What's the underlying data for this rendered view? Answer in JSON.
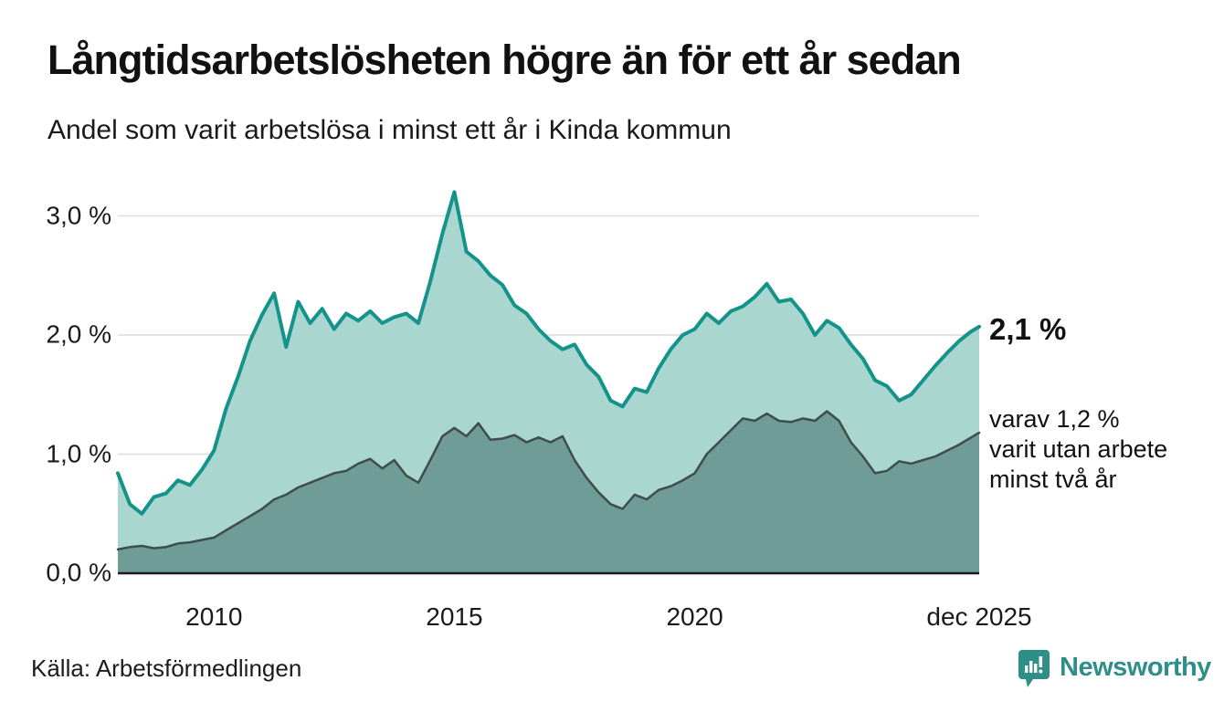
{
  "header": {
    "title": "Långtidsarbetslösheten högre än för ett år sedan",
    "subtitle": "Andel som varit arbetslösa i minst ett år i Kinda kommun"
  },
  "annotations": {
    "latest_total": "2,1 %",
    "two_year": {
      "line1": "varav 1,2 %",
      "line2": "varit utan arbete",
      "line3": "minst två år"
    }
  },
  "footer": {
    "source": "Källa: Arbetsförmedlingen",
    "brand": "Newsworthy",
    "brand_icon": "bar-chart-badge-icon"
  },
  "colors": {
    "total_line": "#14938a",
    "total_fill": "#a9d6cf",
    "two_year_line": "#3d4e4a",
    "two_year_fill": "#6f9c96",
    "gridline": "#dcdcdc",
    "axis_line": "#1b1b1b",
    "text": "#111111",
    "brand_teal": "#2e8f89"
  },
  "chart_data": {
    "type": "area",
    "title": "Långtidsarbetslösheten högre än för ett år sedan",
    "subtitle": "Andel som varit arbetslösa i minst ett år i Kinda kommun",
    "x_unit": "decimal_year",
    "grid": "horizontal",
    "ylim": [
      0,
      3.35
    ],
    "xlim": [
      2008.0,
      2025.9167
    ],
    "x": [
      2008.0,
      2008.25,
      2008.5,
      2008.75,
      2009.0,
      2009.25,
      2009.5,
      2009.75,
      2010.0,
      2010.25,
      2010.5,
      2010.75,
      2011.0,
      2011.25,
      2011.5,
      2011.75,
      2012.0,
      2012.25,
      2012.5,
      2012.75,
      2013.0,
      2013.25,
      2013.5,
      2013.75,
      2014.0,
      2014.25,
      2014.5,
      2014.75,
      2015.0,
      2015.25,
      2015.5,
      2015.75,
      2016.0,
      2016.25,
      2016.5,
      2016.75,
      2017.0,
      2017.25,
      2017.5,
      2017.75,
      2018.0,
      2018.25,
      2018.5,
      2018.75,
      2019.0,
      2019.25,
      2019.5,
      2019.75,
      2020.0,
      2020.25,
      2020.5,
      2020.75,
      2021.0,
      2021.25,
      2021.5,
      2021.75,
      2022.0,
      2022.25,
      2022.5,
      2022.75,
      2023.0,
      2023.25,
      2023.5,
      2023.75,
      2024.0,
      2024.25,
      2024.5,
      2024.75,
      2025.0,
      2025.25,
      2025.5,
      2025.75,
      2025.9167
    ],
    "series": [
      {
        "name": "Andel arbetslösa minst ett år",
        "latest_label": "2,1 %",
        "line_color": "#14938a",
        "fill_color": "#a9d6cf",
        "values": [
          0.84,
          0.58,
          0.5,
          0.64,
          0.67,
          0.78,
          0.74,
          0.87,
          1.03,
          1.38,
          1.65,
          1.95,
          2.17,
          2.35,
          1.9,
          2.28,
          2.1,
          2.22,
          2.05,
          2.18,
          2.12,
          2.2,
          2.1,
          2.15,
          2.18,
          2.1,
          2.45,
          2.85,
          3.2,
          2.7,
          2.62,
          2.5,
          2.42,
          2.25,
          2.18,
          2.05,
          1.95,
          1.88,
          1.92,
          1.75,
          1.65,
          1.45,
          1.4,
          1.55,
          1.52,
          1.72,
          1.88,
          2.0,
          2.05,
          2.18,
          2.1,
          2.2,
          2.24,
          2.32,
          2.43,
          2.28,
          2.3,
          2.18,
          2.0,
          2.12,
          2.06,
          1.92,
          1.8,
          1.62,
          1.57,
          1.45,
          1.5,
          1.62,
          1.74,
          1.85,
          1.95,
          2.03,
          2.07
        ]
      },
      {
        "name": "Andel utan arbete minst två år",
        "latest_label": "1,2 %",
        "line_color": "#3d4e4a",
        "fill_color": "#6f9c96",
        "values": [
          0.2,
          0.22,
          0.23,
          0.21,
          0.22,
          0.25,
          0.26,
          0.28,
          0.3,
          0.36,
          0.42,
          0.48,
          0.54,
          0.62,
          0.66,
          0.72,
          0.76,
          0.8,
          0.84,
          0.86,
          0.92,
          0.96,
          0.88,
          0.95,
          0.82,
          0.76,
          0.95,
          1.15,
          1.22,
          1.15,
          1.26,
          1.12,
          1.13,
          1.16,
          1.1,
          1.14,
          1.1,
          1.15,
          0.95,
          0.8,
          0.68,
          0.58,
          0.54,
          0.66,
          0.62,
          0.7,
          0.73,
          0.78,
          0.84,
          1.0,
          1.1,
          1.2,
          1.3,
          1.28,
          1.34,
          1.28,
          1.27,
          1.3,
          1.28,
          1.36,
          1.28,
          1.1,
          0.98,
          0.84,
          0.86,
          0.94,
          0.92,
          0.95,
          0.98,
          1.03,
          1.08,
          1.14,
          1.18
        ]
      }
    ],
    "yticks": [
      {
        "value": 0.0,
        "label": "0,0 %"
      },
      {
        "value": 1.0,
        "label": "1,0 %"
      },
      {
        "value": 2.0,
        "label": "2,0 %"
      },
      {
        "value": 3.0,
        "label": "3,0 %"
      }
    ],
    "xticks": [
      {
        "value": 2010.0,
        "label": "2010"
      },
      {
        "value": 2015.0,
        "label": "2015"
      },
      {
        "value": 2020.0,
        "label": "2020"
      },
      {
        "value": 2025.9167,
        "label": "dec 2025"
      }
    ]
  }
}
